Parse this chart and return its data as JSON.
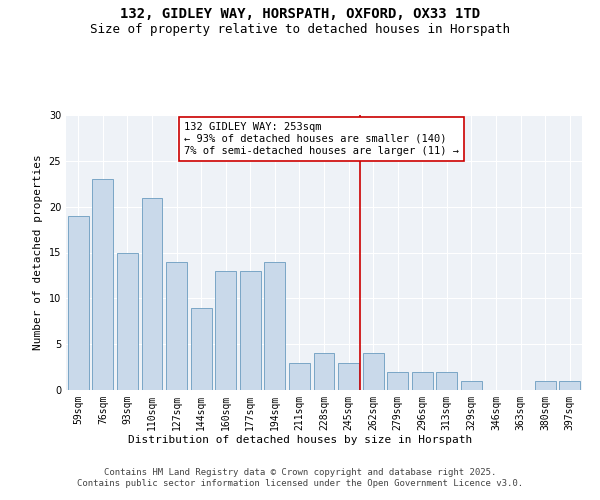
{
  "title1": "132, GIDLEY WAY, HORSPATH, OXFORD, OX33 1TD",
  "title2": "Size of property relative to detached houses in Horspath",
  "xlabel": "Distribution of detached houses by size in Horspath",
  "ylabel": "Number of detached properties",
  "categories": [
    "59sqm",
    "76sqm",
    "93sqm",
    "110sqm",
    "127sqm",
    "144sqm",
    "160sqm",
    "177sqm",
    "194sqm",
    "211sqm",
    "228sqm",
    "245sqm",
    "262sqm",
    "279sqm",
    "296sqm",
    "313sqm",
    "329sqm",
    "346sqm",
    "363sqm",
    "380sqm",
    "397sqm"
  ],
  "values": [
    19,
    23,
    15,
    21,
    14,
    9,
    13,
    13,
    14,
    3,
    4,
    3,
    4,
    2,
    2,
    2,
    1,
    0,
    0,
    1,
    1
  ],
  "bar_color": "#c9d9ea",
  "bar_edge_color": "#6a9cbf",
  "bar_width": 0.85,
  "vline_x_index": 11.47,
  "vline_color": "#cc0000",
  "annotation_text": "132 GIDLEY WAY: 253sqm\n← 93% of detached houses are smaller (140)\n7% of semi-detached houses are larger (11) →",
  "ylim": [
    0,
    30
  ],
  "yticks": [
    0,
    5,
    10,
    15,
    20,
    25,
    30
  ],
  "footer": "Contains HM Land Registry data © Crown copyright and database right 2025.\nContains public sector information licensed under the Open Government Licence v3.0.",
  "bg_color": "#eef2f7",
  "grid_color": "#ffffff",
  "title_fontsize": 10,
  "subtitle_fontsize": 9,
  "axis_label_fontsize": 8,
  "tick_fontsize": 7,
  "annotation_fontsize": 7.5,
  "footer_fontsize": 6.5
}
